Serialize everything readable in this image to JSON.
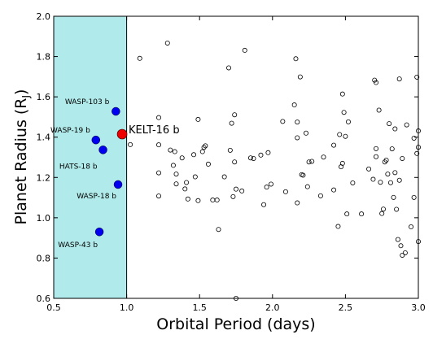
{
  "chart_data": {
    "type": "scatter",
    "xlabel": "Orbital Period (days)",
    "ylabel_main": "Planet Radius (R",
    "ylabel_sub": "J",
    "ylabel_close": ")",
    "xlim": [
      0.5,
      3.0
    ],
    "ylim": [
      0.6,
      2.0
    ],
    "x_ticks": [
      0.5,
      1.0,
      1.5,
      2.0,
      2.5,
      3.0
    ],
    "x_tick_labels": [
      "0.5",
      "1.0",
      "1.5",
      "2.0",
      "2.5",
      "3.0"
    ],
    "y_ticks": [
      0.6,
      0.8,
      1.0,
      1.2,
      1.4,
      1.6,
      1.8,
      2.0
    ],
    "y_tick_labels": [
      "0.6",
      "0.8",
      "1.0",
      "1.2",
      "1.4",
      "1.6",
      "1.8",
      "2.0"
    ],
    "grid": false,
    "shaded_region": {
      "x": [
        0.5,
        1.0
      ],
      "color": "#b0eaea",
      "edge_color": "#000000"
    },
    "colors": {
      "known": "#0000ee",
      "highlight": "#ee0000",
      "background": "#ffffff"
    },
    "highlight": {
      "name": "KELT-16 b",
      "x": 0.969,
      "y": 1.415
    },
    "labeled_planets": [
      {
        "name": "WASP-103 b",
        "x": 0.926,
        "y": 1.528
      },
      {
        "name": "WASP-19 b",
        "x": 0.789,
        "y": 1.386
      },
      {
        "name": "HATS-18 b",
        "x": 0.838,
        "y": 1.337
      },
      {
        "name": "WASP-18 b",
        "x": 0.941,
        "y": 1.165
      },
      {
        "name": "WASP-43 b",
        "x": 0.813,
        "y": 0.93
      }
    ],
    "other_planets": [
      [
        1.025,
        1.363
      ],
      [
        1.09,
        1.791
      ],
      [
        1.22,
        1.497
      ],
      [
        1.22,
        1.223
      ],
      [
        1.22,
        1.108
      ],
      [
        1.22,
        1.362
      ],
      [
        1.28,
        1.867
      ],
      [
        1.3,
        1.336
      ],
      [
        1.32,
        1.26
      ],
      [
        1.33,
        1.328
      ],
      [
        1.34,
        1.217
      ],
      [
        1.34,
        1.168
      ],
      [
        1.38,
        1.297
      ],
      [
        1.4,
        1.143
      ],
      [
        1.41,
        1.175
      ],
      [
        1.42,
        1.093
      ],
      [
        1.46,
        1.313
      ],
      [
        1.47,
        1.203
      ],
      [
        1.49,
        1.085
      ],
      [
        1.49,
        1.488
      ],
      [
        1.52,
        1.328
      ],
      [
        1.53,
        1.349
      ],
      [
        1.54,
        1.357
      ],
      [
        1.56,
        1.266
      ],
      [
        1.59,
        1.088
      ],
      [
        1.62,
        1.088
      ],
      [
        1.63,
        0.942
      ],
      [
        1.67,
        1.203
      ],
      [
        1.7,
        1.744
      ],
      [
        1.71,
        1.335
      ],
      [
        1.72,
        1.469
      ],
      [
        1.73,
        1.105
      ],
      [
        1.74,
        1.511
      ],
      [
        1.74,
        1.277
      ],
      [
        1.75,
        1.142
      ],
      [
        1.79,
        1.133
      ],
      [
        1.81,
        1.831
      ],
      [
        1.85,
        1.297
      ],
      [
        1.87,
        1.294
      ],
      [
        1.92,
        1.311
      ],
      [
        1.94,
        1.065
      ],
      [
        1.96,
        1.152
      ],
      [
        1.97,
        1.323
      ],
      [
        1.99,
        1.167
      ],
      [
        2.07,
        1.478
      ],
      [
        2.09,
        1.129
      ],
      [
        2.15,
        1.56
      ],
      [
        2.16,
        1.789
      ],
      [
        2.17,
        1.475
      ],
      [
        2.17,
        1.397
      ],
      [
        2.17,
        1.074
      ],
      [
        2.19,
        1.699
      ],
      [
        2.2,
        1.214
      ],
      [
        2.21,
        1.211
      ],
      [
        2.23,
        1.42
      ],
      [
        2.24,
        1.154
      ],
      [
        2.25,
        1.277
      ],
      [
        2.27,
        1.28
      ],
      [
        2.33,
        1.109
      ],
      [
        2.35,
        1.301
      ],
      [
        2.42,
        1.36
      ],
      [
        2.42,
        1.138
      ],
      [
        2.45,
        0.957
      ],
      [
        2.46,
        1.413
      ],
      [
        2.47,
        1.253
      ],
      [
        2.48,
        1.614
      ],
      [
        2.48,
        1.27
      ],
      [
        2.49,
        1.523
      ],
      [
        2.5,
        1.404
      ],
      [
        2.51,
        1.019
      ],
      [
        2.52,
        1.476
      ],
      [
        2.55,
        1.173
      ],
      [
        2.61,
        1.019
      ],
      [
        2.66,
        1.242
      ],
      [
        2.69,
        1.191
      ],
      [
        2.7,
        1.683
      ],
      [
        2.71,
        1.671
      ],
      [
        2.71,
        1.303
      ],
      [
        2.71,
        1.343
      ],
      [
        2.73,
        1.534
      ],
      [
        2.74,
        1.176
      ],
      [
        2.75,
        1.021
      ],
      [
        2.76,
        1.043
      ],
      [
        2.77,
        1.277
      ],
      [
        2.78,
        1.286
      ],
      [
        2.79,
        1.217
      ],
      [
        2.8,
        1.467
      ],
      [
        2.81,
        1.174
      ],
      [
        2.82,
        1.342
      ],
      [
        2.83,
        1.101
      ],
      [
        2.84,
        1.441
      ],
      [
        2.85,
        1.042
      ],
      [
        2.86,
        0.892
      ],
      [
        2.87,
        1.689
      ],
      [
        2.88,
        0.861
      ],
      [
        2.89,
        1.294
      ],
      [
        2.89,
        0.814
      ],
      [
        2.91,
        0.826
      ],
      [
        2.92,
        1.461
      ],
      [
        2.95,
        0.955
      ],
      [
        2.97,
        1.101
      ],
      [
        2.97,
        1.395
      ],
      [
        2.99,
        1.698
      ],
      [
        2.99,
        1.319
      ],
      [
        3.0,
        1.431
      ],
      [
        3.0,
        1.35
      ],
      [
        3.0,
        0.882
      ],
      [
        2.84,
        1.224
      ],
      [
        1.75,
        0.6
      ],
      [
        2.87,
        1.186
      ]
    ]
  }
}
